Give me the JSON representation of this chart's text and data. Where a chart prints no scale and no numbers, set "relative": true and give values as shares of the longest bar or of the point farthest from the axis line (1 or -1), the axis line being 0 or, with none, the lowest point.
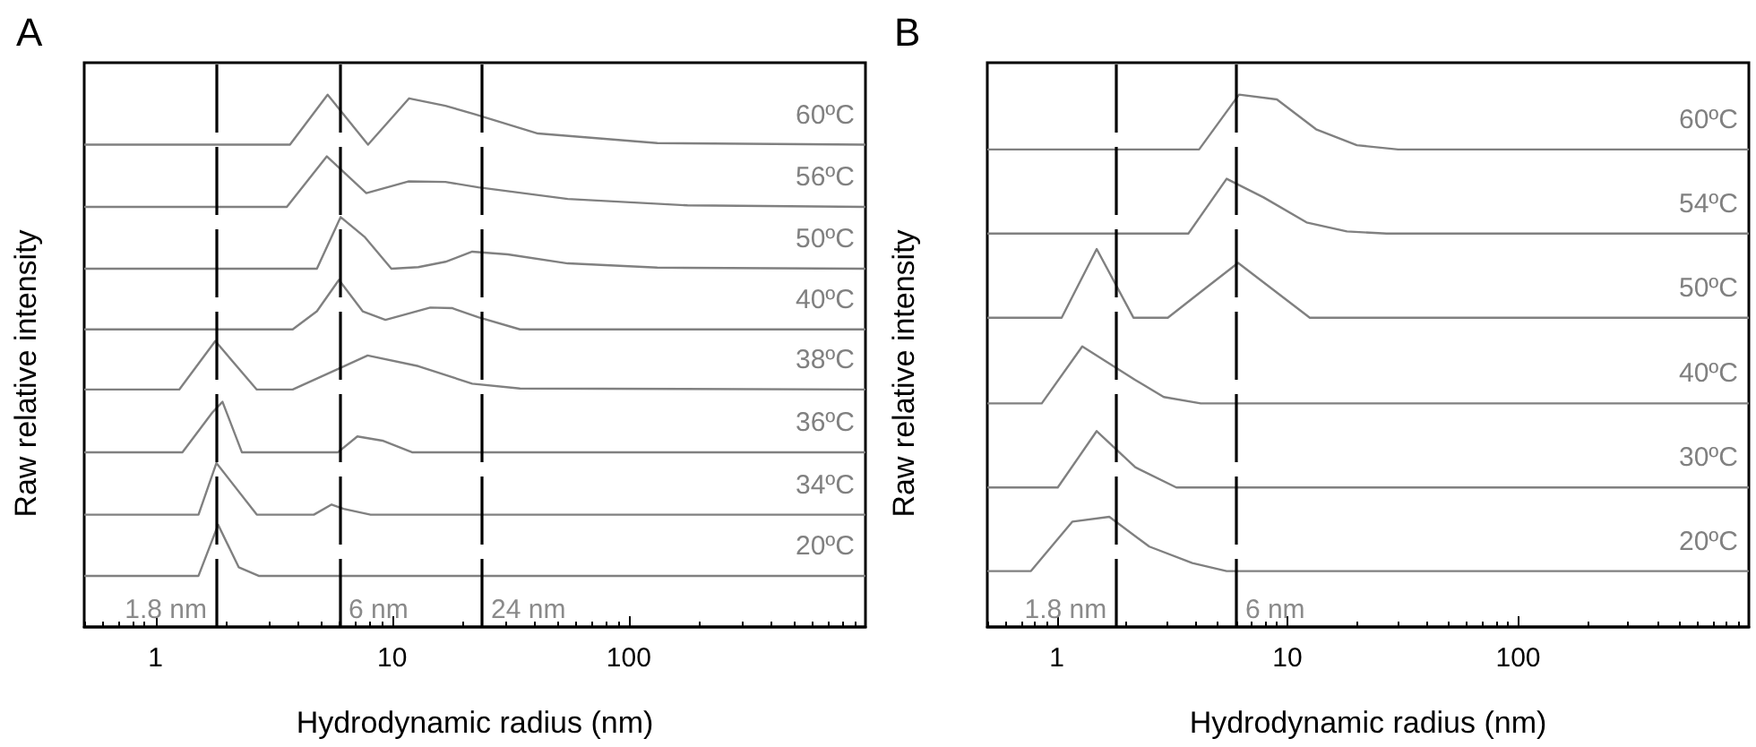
{
  "chart_data": [
    {
      "type": "line",
      "title": "A",
      "xlabel": "Hydrodynamic radius (nm)",
      "ylabel": "Raw relative intensity",
      "relative": true,
      "log": "x",
      "xlim": [
        0.5,
        1000
      ],
      "xticks": [
        1,
        10,
        100
      ],
      "grid": false,
      "legend": false,
      "marker": "none",
      "series": [
        {
          "name": "60ºC",
          "color": "#808080",
          "x": [
            0.5,
            3.7,
            5.34,
            7.91,
            11.8,
            16.8,
            22.4,
            41.3,
            132,
            1000
          ],
          "values": [
            0.906,
            0.906,
            1.0,
            0.906,
            0.993,
            0.979,
            0.963,
            0.927,
            0.909,
            0.906
          ]
        },
        {
          "name": "56ºC",
          "color": "#808080",
          "x": [
            0.5,
            3.59,
            5.3,
            7.78,
            11.7,
            16.8,
            23.1,
            55.2,
            177,
            1000
          ],
          "values": [
            0.789,
            0.789,
            0.884,
            0.815,
            0.837,
            0.836,
            0.826,
            0.804,
            0.792,
            0.789
          ]
        },
        {
          "name": "50ºC",
          "color": "#808080",
          "x": [
            0.5,
            4.81,
            6.06,
            7.64,
            9.93,
            12.9,
            16.8,
            21.8,
            30.8,
            55.2,
            132,
            1000
          ],
          "values": [
            0.673,
            0.673,
            0.77,
            0.733,
            0.673,
            0.676,
            0.686,
            0.705,
            0.7,
            0.683,
            0.675,
            0.673
          ]
        },
        {
          "name": "40ºC",
          "color": "#808080",
          "x": [
            0.5,
            3.8,
            4.81,
            5.96,
            7.51,
            9.37,
            14.5,
            17.9,
            23.1,
            34.7,
            1000
          ],
          "values": [
            0.559,
            0.559,
            0.593,
            0.652,
            0.593,
            0.577,
            0.6,
            0.599,
            0.582,
            0.559,
            0.559
          ]
        },
        {
          "name": "38ºC",
          "color": "#808080",
          "x": [
            0.5,
            1.26,
            1.79,
            2.68,
            3.8,
            6.06,
            7.88,
            12.9,
            21.8,
            34.7,
            1000
          ],
          "values": [
            0.446,
            0.446,
            0.537,
            0.446,
            0.446,
            0.487,
            0.51,
            0.49,
            0.457,
            0.448,
            0.446
          ]
        },
        {
          "name": "36ºC",
          "color": "#808080",
          "x": [
            0.5,
            1.3,
            1.74,
            1.92,
            2.32,
            5.89,
            7.13,
            9.1,
            12.2,
            1000
          ],
          "values": [
            0.328,
            0.328,
            0.403,
            0.423,
            0.328,
            0.328,
            0.358,
            0.35,
            0.328,
            0.328
          ]
        },
        {
          "name": "34ºC",
          "color": "#808080",
          "x": [
            0.5,
            1.52,
            1.81,
            2.68,
            4.67,
            5.55,
            6.24,
            8.11,
            1000
          ],
          "values": [
            0.211,
            0.211,
            0.308,
            0.211,
            0.211,
            0.23,
            0.222,
            0.211,
            0.211
          ]
        },
        {
          "name": "20ºC",
          "color": "#808080",
          "x": [
            0.5,
            1.52,
            1.84,
            2.25,
            2.73,
            1000
          ],
          "values": [
            0.096,
            0.096,
            0.192,
            0.112,
            0.096,
            0.096
          ]
        }
      ],
      "ref_lines": [
        {
          "axis": "x",
          "value": 1.8,
          "label": "1.8 nm",
          "color": "#000000",
          "line_style": "dashed"
        },
        {
          "axis": "x",
          "value": 6,
          "label": "6 nm",
          "color": "#000000",
          "line_style": "dashed"
        },
        {
          "axis": "x",
          "value": 24,
          "label": "24 nm",
          "color": "#000000",
          "line_style": "dashed"
        }
      ]
    },
    {
      "type": "line",
      "title": "B",
      "xlabel": "Hydrodynamic radius (nm)",
      "ylabel": "Raw relative intensity",
      "relative": true,
      "log": "x",
      "xlim": [
        0.5,
        1000
      ],
      "xticks": [
        1,
        10,
        100
      ],
      "grid": false,
      "legend": false,
      "marker": "none",
      "series": [
        {
          "name": "60ºC",
          "color": "#808080",
          "x": [
            0.5,
            4.14,
            6.17,
            9.0,
            13.3,
            20.0,
            30.2,
            1000
          ],
          "values": [
            0.897,
            0.897,
            1.0,
            0.991,
            0.935,
            0.905,
            0.897,
            0.897
          ]
        },
        {
          "name": "54ºC",
          "color": "#808080",
          "x": [
            0.5,
            3.72,
            5.45,
            7.88,
            12.1,
            18.1,
            26.9,
            1000
          ],
          "values": [
            0.739,
            0.739,
            0.842,
            0.807,
            0.76,
            0.743,
            0.739,
            0.739
          ]
        },
        {
          "name": "50ºC",
          "color": "#808080",
          "x": [
            0.5,
            1.05,
            1.49,
            2.15,
            3.03,
            4.34,
            6.11,
            12.5,
            1000
          ],
          "values": [
            0.581,
            0.581,
            0.71,
            0.581,
            0.581,
            0.634,
            0.684,
            0.581,
            0.581
          ]
        },
        {
          "name": "40ºC",
          "color": "#808080",
          "x": [
            0.5,
            0.861,
            1.29,
            2.19,
            2.91,
            4.21,
            1000
          ],
          "values": [
            0.42,
            0.42,
            0.527,
            0.464,
            0.432,
            0.42,
            0.42
          ]
        },
        {
          "name": "30ºC",
          "color": "#808080",
          "x": [
            0.5,
            1.01,
            1.49,
            2.19,
            3.3,
            1000
          ],
          "values": [
            0.262,
            0.262,
            0.368,
            0.3,
            0.262,
            0.262
          ]
        },
        {
          "name": "20ºC",
          "color": "#808080",
          "x": [
            0.5,
            0.773,
            1.17,
            1.69,
            2.52,
            3.87,
            5.45,
            1000
          ],
          "values": [
            0.105,
            0.105,
            0.198,
            0.207,
            0.151,
            0.12,
            0.105,
            0.105
          ]
        }
      ],
      "ref_lines": [
        {
          "axis": "x",
          "value": 1.8,
          "label": "1.8 nm",
          "color": "#000000",
          "line_style": "dashed"
        },
        {
          "axis": "x",
          "value": 6,
          "label": "6 nm",
          "color": "#000000",
          "line_style": "dashed"
        }
      ]
    }
  ]
}
